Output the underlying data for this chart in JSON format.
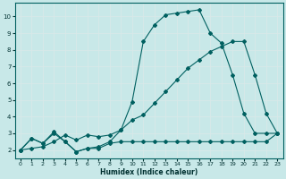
{
  "xlabel": "Humidex (Indice chaleur)",
  "bg_color": "#c8e8e8",
  "grid_color": "#b0d4d4",
  "line_color": "#006060",
  "xlim": [
    -0.5,
    23.5
  ],
  "ylim": [
    1.5,
    10.8
  ],
  "xticks": [
    0,
    1,
    2,
    3,
    4,
    5,
    6,
    7,
    8,
    9,
    10,
    11,
    12,
    13,
    14,
    15,
    16,
    17,
    18,
    19,
    20,
    21,
    22,
    23
  ],
  "yticks": [
    2,
    3,
    4,
    5,
    6,
    7,
    8,
    9,
    10
  ],
  "line1_x": [
    0,
    1,
    2,
    3,
    4,
    5,
    6,
    7,
    8,
    9,
    10,
    11,
    12,
    13,
    14,
    15,
    16,
    17,
    18,
    19,
    20,
    21,
    22,
    23
  ],
  "line1_y": [
    2.0,
    2.7,
    2.4,
    3.0,
    2.5,
    1.9,
    2.1,
    2.1,
    2.4,
    2.5,
    2.5,
    2.5,
    2.5,
    2.5,
    2.5,
    2.5,
    2.5,
    2.5,
    2.5,
    2.5,
    2.5,
    2.5,
    2.5,
    3.0
  ],
  "line2_x": [
    0,
    1,
    2,
    3,
    4,
    5,
    6,
    7,
    8,
    9,
    10,
    11,
    12,
    13,
    14,
    15,
    16,
    17,
    18,
    19,
    20,
    21,
    22,
    23
  ],
  "line2_y": [
    2.0,
    2.1,
    2.2,
    2.5,
    2.9,
    2.6,
    2.9,
    2.8,
    2.9,
    3.2,
    3.8,
    4.1,
    4.8,
    5.5,
    6.2,
    6.9,
    7.4,
    7.9,
    8.2,
    8.5,
    8.5,
    6.5,
    4.2,
    3.0
  ],
  "line3_x": [
    0,
    1,
    2,
    3,
    4,
    5,
    6,
    7,
    8,
    9,
    10,
    11,
    12,
    13,
    14,
    15,
    16,
    17,
    18,
    19,
    20,
    21,
    22,
    23
  ],
  "line3_y": [
    2.0,
    2.7,
    2.4,
    3.1,
    2.5,
    1.9,
    2.1,
    2.2,
    2.5,
    3.2,
    4.9,
    8.5,
    9.5,
    10.1,
    10.2,
    10.3,
    10.4,
    9.0,
    8.4,
    6.5,
    4.2,
    3.0,
    3.0,
    3.0
  ]
}
